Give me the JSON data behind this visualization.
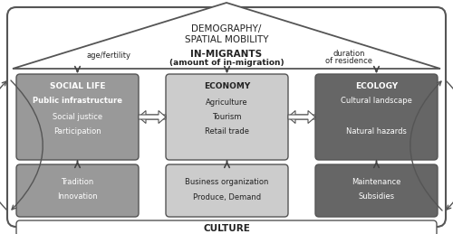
{
  "bg_color": "#ffffff",
  "title_line1": "DEMOGRAPHY/",
  "title_line2": "SPATIAL MOBILITY",
  "in_migrants_bold": "IN-MIGRANTS",
  "in_migrants_sub": "(amount of in-migration)",
  "age_fertility": "age/fertility",
  "duration": "duration\nof residence",
  "boxes": {
    "social_life": {
      "color": "#999999",
      "title": "SOCIAL LIFE",
      "lines": [
        "Public infrastructure",
        "Social justice",
        "Participation"
      ],
      "bold_idx": 0
    },
    "economy": {
      "color": "#cccccc",
      "title": "ECONOMY",
      "lines": [
        "Agriculture",
        "Tourism",
        "Retail trade"
      ],
      "bold_idx": -1
    },
    "ecology": {
      "color": "#666666",
      "title": "ECOLOGY",
      "lines": [
        "Cultural landscape",
        "",
        "Natural hazards"
      ],
      "bold_idx": -1
    },
    "tradition": {
      "color": "#999999",
      "lines": [
        "Tradition",
        "Innovation"
      ]
    },
    "business": {
      "color": "#cccccc",
      "lines": [
        "Business organization",
        "Produce, Demand"
      ]
    },
    "maintenance": {
      "color": "#666666",
      "lines": [
        "Maintenance",
        "Subsidies"
      ]
    }
  },
  "culture_text": "CULTURE",
  "edge_color": "#555555",
  "text_color": "#222222"
}
